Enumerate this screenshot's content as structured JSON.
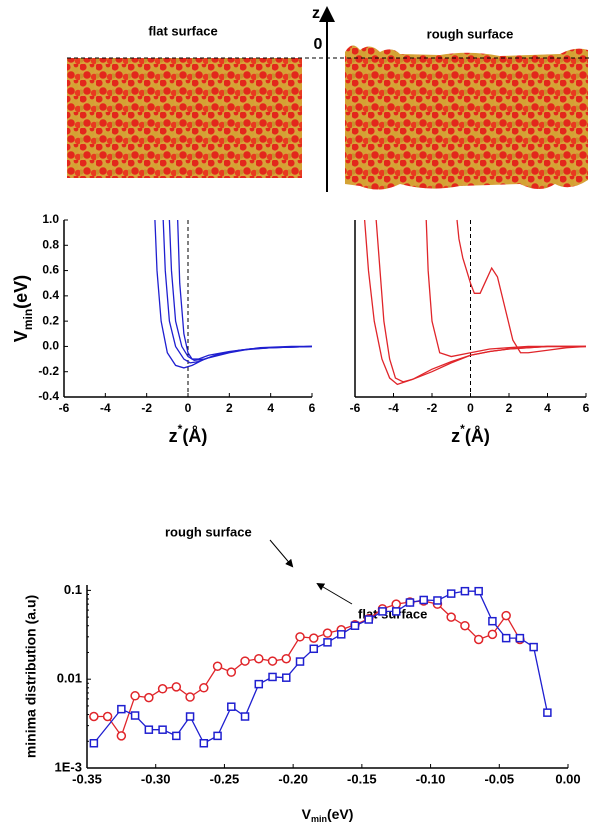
{
  "figure": {
    "flat_label": "flat surface",
    "rough_label": "rough surface",
    "axis_label": "z",
    "zero_label": "0"
  },
  "chart_data": [
    {
      "type": "line",
      "xlabel": [
        "z",
        "*",
        "(Å)"
      ],
      "ylabel": [
        "V",
        "min",
        "(eV)"
      ],
      "xlim": [
        -6,
        6
      ],
      "ylim": [
        -0.4,
        1.0
      ],
      "xticks": [
        -6,
        -4,
        -2,
        0,
        2,
        4,
        6
      ],
      "yticks": [
        {
          "value": -0.4,
          "label": "-0.4"
        },
        -0.2,
        {
          "value": 0,
          "label": "0.0"
        },
        0.2,
        0.4,
        0.6,
        0.8,
        {
          "value": 1,
          "label": "1.0"
        }
      ],
      "vline": 0,
      "series": [
        {
          "color": "#1f1fd0",
          "x": [
            -1.6,
            -1.5,
            -1.3,
            -1.0,
            -0.6,
            -0.2,
            0.2,
            0.8,
            1.5,
            2.5,
            3.5,
            5,
            6
          ],
          "values": [
            1.0,
            0.6,
            0.2,
            -0.05,
            -0.15,
            -0.17,
            -0.15,
            -0.1,
            -0.06,
            -0.03,
            -0.01,
            0,
            0
          ]
        },
        {
          "color": "#1f1fd0",
          "x": [
            -1.2,
            -1.1,
            -0.9,
            -0.6,
            -0.2,
            0.1,
            0.5,
            1,
            2,
            3,
            4,
            6
          ],
          "values": [
            1.0,
            0.6,
            0.2,
            0.0,
            -0.1,
            -0.13,
            -0.12,
            -0.09,
            -0.05,
            -0.02,
            -0.01,
            0
          ]
        },
        {
          "color": "#1f1fd0",
          "x": [
            -0.9,
            -0.8,
            -0.6,
            -0.3,
            0,
            0.3,
            0.8,
            1.5,
            2.5,
            4,
            6
          ],
          "values": [
            1.0,
            0.6,
            0.2,
            0.0,
            -0.08,
            -0.11,
            -0.1,
            -0.06,
            -0.03,
            -0.01,
            0
          ]
        },
        {
          "color": "#1f1fd0",
          "x": [
            -0.5,
            -0.4,
            -0.2,
            0,
            0.2,
            0.5,
            1,
            2,
            3,
            4,
            6
          ],
          "values": [
            1.0,
            0.5,
            0.1,
            -0.05,
            -0.1,
            -0.1,
            -0.07,
            -0.04,
            -0.02,
            -0.01,
            0
          ]
        }
      ]
    },
    {
      "type": "line",
      "xlabel": [
        "z",
        "*",
        "(Å)"
      ],
      "xlim": [
        -6,
        6
      ],
      "ylim": [
        -0.4,
        1.0
      ],
      "xticks": [
        -6,
        -4,
        -2,
        0,
        2,
        4,
        6
      ],
      "vline": 0,
      "series": [
        {
          "color": "#e0252a",
          "x": [
            -5.5,
            -5.3,
            -5,
            -4.6,
            -4.2,
            -3.8,
            -3,
            -2,
            -1,
            0,
            1,
            2,
            3,
            4,
            5,
            6
          ],
          "values": [
            1.0,
            0.6,
            0.2,
            -0.1,
            -0.25,
            -0.3,
            -0.26,
            -0.18,
            -0.12,
            -0.07,
            -0.04,
            -0.02,
            -0.01,
            0,
            0,
            0
          ]
        },
        {
          "color": "#e0252a",
          "x": [
            -4.9,
            -4.7,
            -4.5,
            -4.2,
            -3.9,
            -3.5,
            -3,
            -2,
            -1,
            0,
            1,
            2,
            3,
            4,
            5,
            6
          ],
          "values": [
            1.0,
            0.6,
            0.2,
            -0.1,
            -0.25,
            -0.28,
            -0.26,
            -0.2,
            -0.13,
            -0.07,
            -0.04,
            -0.02,
            -0.01,
            0,
            0,
            0
          ]
        },
        {
          "color": "#e0252a",
          "x": [
            -2.3,
            -2.2,
            -2,
            -1.6,
            -1,
            0,
            1,
            2,
            3,
            4,
            5,
            6
          ],
          "values": [
            1.0,
            0.6,
            0.2,
            -0.05,
            -0.08,
            -0.05,
            -0.02,
            -0.01,
            0,
            0,
            0,
            0
          ]
        },
        {
          "color": "#e0252a",
          "x": [
            -0.7,
            -0.6,
            -0.4,
            -0.2,
            0,
            0.2,
            0.5,
            0.8,
            1.1,
            1.4,
            1.8,
            2.2,
            2.6,
            3,
            4,
            5,
            6
          ],
          "values": [
            1.0,
            0.85,
            0.7,
            0.6,
            0.5,
            0.42,
            0.42,
            0.52,
            0.62,
            0.55,
            0.3,
            0.05,
            -0.05,
            -0.05,
            -0.03,
            -0.01,
            0
          ]
        }
      ]
    },
    {
      "type": "line",
      "xlabel": [
        "V",
        "min",
        "(eV)"
      ],
      "ylabel": "minima distribution (a.u)",
      "yscale": "log",
      "xlim": [
        -0.35,
        0
      ],
      "ylim": [
        0.001,
        0.115
      ],
      "xticks": [
        -0.35,
        {
          "value": -0.3,
          "label": "-0.30"
        },
        -0.25,
        {
          "value": -0.2,
          "label": "-0.20"
        },
        -0.15,
        {
          "value": -0.1,
          "label": "-0.10"
        },
        -0.05,
        {
          "value": 0,
          "label": "0.00"
        }
      ],
      "yticks": [
        {
          "value": 0.001,
          "label": "1E-3"
        },
        0.01,
        0.1
      ],
      "series": [
        {
          "name": "rough surface",
          "color": "#e0252a",
          "marker": "circle",
          "x": [
            -0.345,
            -0.335,
            -0.325,
            -0.315,
            -0.305,
            -0.295,
            -0.285,
            -0.275,
            -0.265,
            -0.255,
            -0.245,
            -0.235,
            -0.225,
            -0.215,
            -0.205,
            -0.195,
            -0.185,
            -0.175,
            -0.165,
            -0.155,
            -0.145,
            -0.135,
            -0.125,
            -0.115,
            -0.105,
            -0.095,
            -0.085,
            -0.075,
            -0.065,
            -0.055,
            -0.045,
            -0.035
          ],
          "values": [
            0.0038,
            0.0038,
            0.0023,
            0.0065,
            0.0062,
            0.0078,
            0.0082,
            0.0063,
            0.008,
            0.014,
            0.012,
            0.016,
            0.017,
            0.016,
            0.017,
            0.03,
            0.029,
            0.033,
            0.036,
            0.041,
            0.048,
            0.062,
            0.07,
            0.074,
            0.076,
            0.07,
            0.05,
            0.04,
            0.028,
            0.032,
            0.052,
            0.028
          ]
        },
        {
          "name": "flat surface",
          "color": "#1f1fd0",
          "marker": "square",
          "x": [
            -0.345,
            -0.325,
            -0.315,
            -0.305,
            -0.295,
            -0.285,
            -0.275,
            -0.265,
            -0.255,
            -0.245,
            -0.235,
            -0.225,
            -0.215,
            -0.205,
            -0.195,
            -0.185,
            -0.175,
            -0.165,
            -0.155,
            -0.145,
            -0.135,
            -0.125,
            -0.115,
            -0.105,
            -0.095,
            -0.085,
            -0.075,
            -0.065,
            -0.055,
            -0.045,
            -0.035,
            -0.025,
            -0.015
          ],
          "values": [
            0.0019,
            0.0046,
            0.0039,
            0.0027,
            0.0027,
            0.0023,
            0.0038,
            0.0019,
            0.0023,
            0.0049,
            0.0038,
            0.0088,
            0.0106,
            0.0104,
            0.0158,
            0.022,
            0.026,
            0.032,
            0.04,
            0.047,
            0.058,
            0.058,
            0.073,
            0.078,
            0.077,
            0.092,
            0.098,
            0.098,
            0.045,
            0.029,
            0.029,
            0.023,
            0.0042
          ]
        }
      ]
    }
  ]
}
